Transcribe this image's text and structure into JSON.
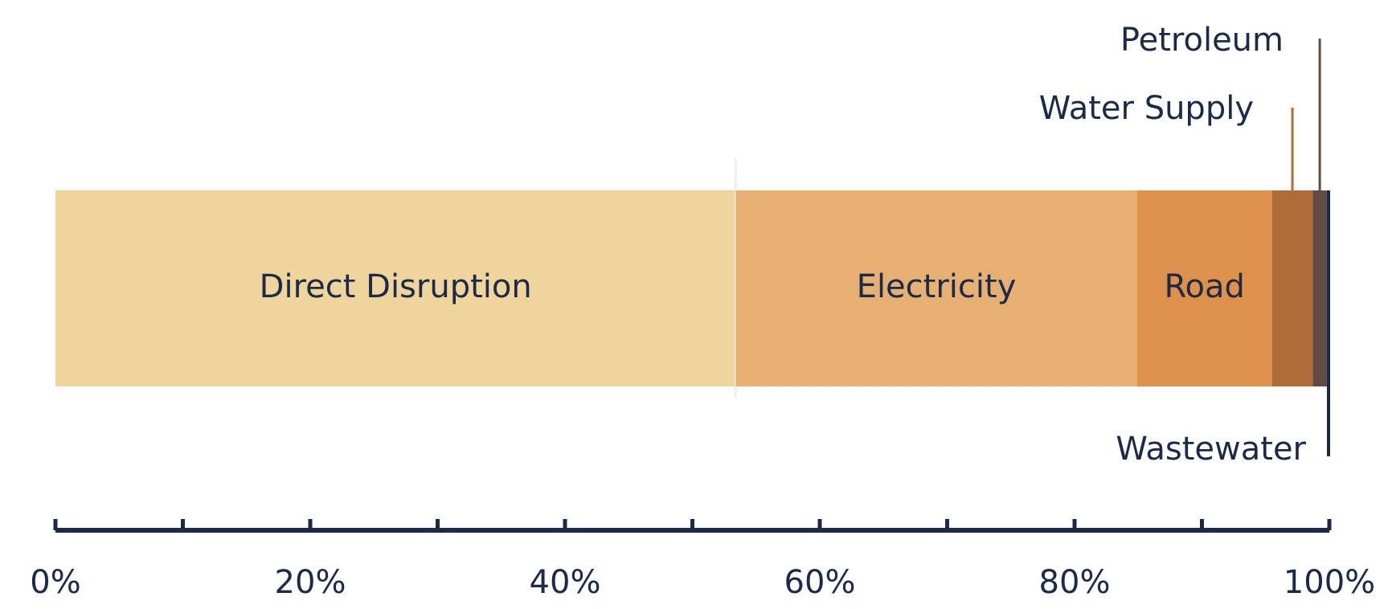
{
  "chart_data": {
    "type": "stacked-bar-horizontal",
    "series": [
      {
        "name": "Direct Disruption",
        "color": "#efd49b",
        "values": [
          53.4
        ]
      },
      {
        "name": "Electricity",
        "color": "#e6b073",
        "values": [
          31.5
        ]
      },
      {
        "name": "Road",
        "color": "#de914a",
        "values": [
          10.6
        ]
      },
      {
        "name": "Water Supply",
        "color": "#b06c38",
        "values": [
          3.2
        ]
      },
      {
        "name": "Petroleum",
        "color": "#634a42",
        "values": [
          1.1
        ]
      },
      {
        "name": "Wastewater",
        "color": "#1c2a4a",
        "values": [
          0.2
        ]
      }
    ],
    "xlim": [
      0,
      100
    ],
    "xticks": [
      {
        "value": 0,
        "label": "0%"
      },
      {
        "value": 20,
        "label": "20%"
      },
      {
        "value": 40,
        "label": "40%"
      },
      {
        "value": 60,
        "label": "60%"
      },
      {
        "value": 80,
        "label": "80%"
      },
      {
        "value": 100,
        "label": "100%"
      }
    ],
    "minor_xticks": [
      10,
      30,
      50,
      70,
      90
    ]
  }
}
